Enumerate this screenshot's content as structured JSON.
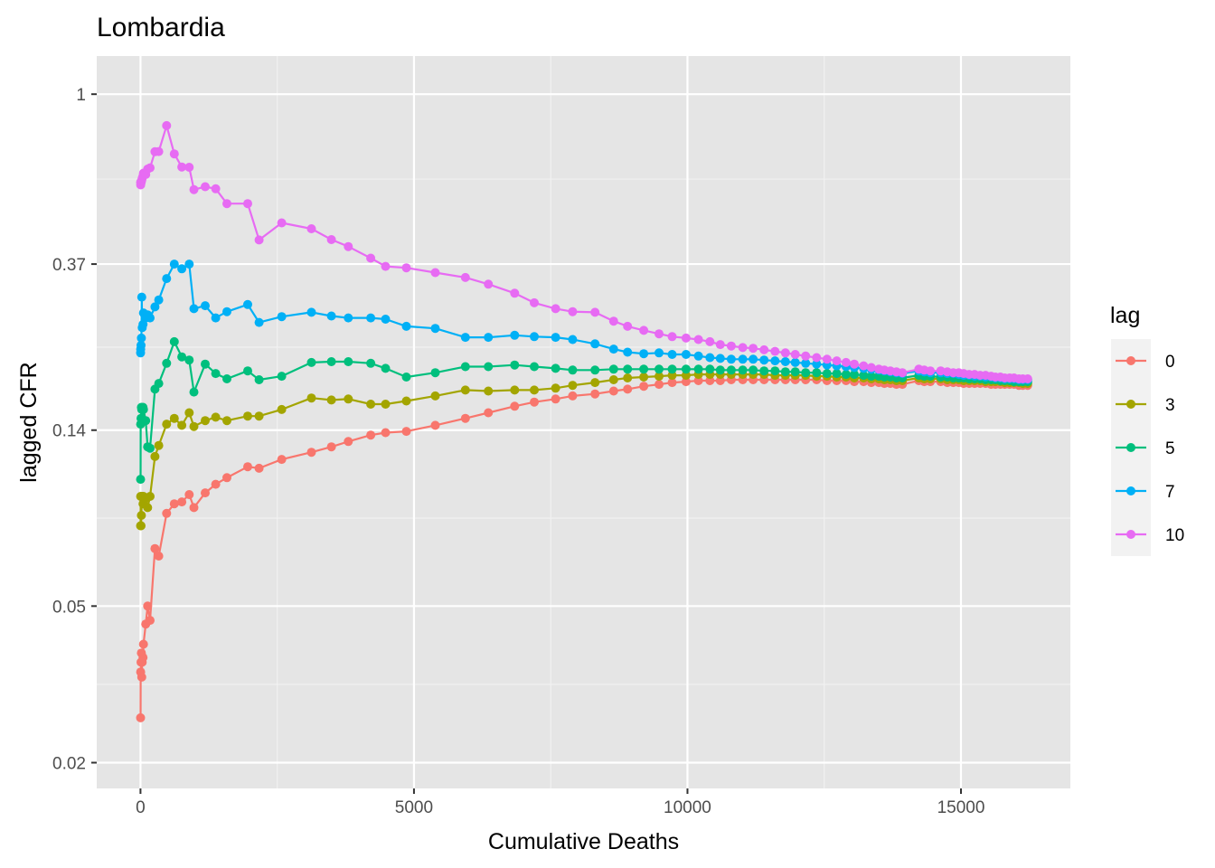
{
  "chart_data": {
    "type": "line",
    "title": "Lombardia",
    "xlabel": "Cumulative Deaths",
    "ylabel": "lagged CFR",
    "x_scale": "linear",
    "y_scale": "log",
    "xlim": [
      -800,
      17000
    ],
    "ylim": [
      0.0172,
      1.25
    ],
    "x_ticks": [
      {
        "value": 0,
        "label": "0"
      },
      {
        "value": 5000,
        "label": "5000"
      },
      {
        "value": 10000,
        "label": "10000"
      },
      {
        "value": 15000,
        "label": "15000"
      }
    ],
    "y_ticks": [
      {
        "value": 0.02,
        "label": "0.02"
      },
      {
        "value": 0.05,
        "label": "0.05"
      },
      {
        "value": 0.14,
        "label": "0.14"
      },
      {
        "value": 0.37,
        "label": "0.37"
      },
      {
        "value": 1,
        "label": "1"
      }
    ],
    "grid": true,
    "legend": {
      "title": "lag",
      "position": "right"
    },
    "x": [
      2,
      4,
      10,
      17,
      23,
      31,
      47,
      55,
      96,
      131,
      175,
      265,
      333,
      478,
      618,
      755,
      890,
      977,
      1183,
      1375,
      1580,
      1960,
      2168,
      2582,
      3125,
      3490,
      3800,
      4210,
      4480,
      4860,
      5390,
      5940,
      6360,
      6840,
      7200,
      7590,
      7900,
      8310,
      8650,
      8905,
      9200,
      9480,
      9720,
      9975,
      10200,
      10410,
      10600,
      10800,
      11010,
      11200,
      11400,
      11600,
      11790,
      11970,
      12160,
      12360,
      12550,
      12730,
      12900,
      13050,
      13220,
      13360,
      13500,
      13600,
      13710,
      13820,
      13930,
      14230,
      14330,
      14440,
      14630,
      14750,
      14860,
      14960,
      15050,
      15150,
      15250,
      15350,
      15450,
      15550,
      15630,
      15720,
      15800,
      15890,
      15970,
      16060,
      16130,
      16220
    ],
    "series": [
      {
        "name": "0",
        "color": "#F8766D",
        "values": [
          0.026,
          0.034,
          0.036,
          0.038,
          0.033,
          0.036,
          0.037,
          0.04,
          0.045,
          0.05,
          0.046,
          0.07,
          0.067,
          0.086,
          0.091,
          0.092,
          0.096,
          0.089,
          0.097,
          0.102,
          0.106,
          0.113,
          0.112,
          0.118,
          0.123,
          0.127,
          0.131,
          0.136,
          0.138,
          0.139,
          0.144,
          0.15,
          0.155,
          0.161,
          0.165,
          0.168,
          0.171,
          0.173,
          0.176,
          0.178,
          0.181,
          0.183,
          0.185,
          0.186,
          0.187,
          0.187,
          0.187,
          0.188,
          0.188,
          0.188,
          0.188,
          0.188,
          0.188,
          0.188,
          0.188,
          0.188,
          0.187,
          0.187,
          0.187,
          0.186,
          0.186,
          0.185,
          0.185,
          0.184,
          0.184,
          0.183,
          0.183,
          0.187,
          0.186,
          0.186,
          0.186,
          0.185,
          0.185,
          0.185,
          0.184,
          0.184,
          0.184,
          0.184,
          0.184,
          0.183,
          0.183,
          0.183,
          0.183,
          0.183,
          0.183,
          0.182,
          0.182,
          0.182
        ]
      },
      {
        "name": "3",
        "color": "#A3A500",
        "values": [
          0.08,
          0.095,
          0.08,
          0.085,
          0.095,
          0.095,
          0.091,
          0.095,
          0.094,
          0.089,
          0.095,
          0.12,
          0.128,
          0.145,
          0.15,
          0.144,
          0.155,
          0.143,
          0.148,
          0.151,
          0.148,
          0.152,
          0.152,
          0.158,
          0.169,
          0.167,
          0.168,
          0.163,
          0.163,
          0.166,
          0.171,
          0.177,
          0.176,
          0.177,
          0.177,
          0.179,
          0.182,
          0.185,
          0.188,
          0.19,
          0.191,
          0.192,
          0.193,
          0.193,
          0.194,
          0.194,
          0.194,
          0.194,
          0.194,
          0.194,
          0.194,
          0.193,
          0.193,
          0.193,
          0.193,
          0.192,
          0.192,
          0.191,
          0.191,
          0.19,
          0.19,
          0.189,
          0.189,
          0.188,
          0.188,
          0.187,
          0.187,
          0.19,
          0.189,
          0.189,
          0.189,
          0.188,
          0.188,
          0.188,
          0.187,
          0.187,
          0.187,
          0.187,
          0.186,
          0.186,
          0.186,
          0.186,
          0.185,
          0.185,
          0.185,
          0.185,
          0.184,
          0.184
        ]
      },
      {
        "name": "5",
        "color": "#00BF7D",
        "values": [
          0.105,
          0.145,
          0.15,
          0.16,
          0.158,
          0.148,
          0.16,
          0.158,
          0.148,
          0.127,
          0.126,
          0.178,
          0.184,
          0.207,
          0.235,
          0.215,
          0.211,
          0.175,
          0.206,
          0.195,
          0.189,
          0.198,
          0.188,
          0.192,
          0.208,
          0.209,
          0.209,
          0.207,
          0.201,
          0.191,
          0.196,
          0.203,
          0.203,
          0.205,
          0.203,
          0.201,
          0.199,
          0.199,
          0.2,
          0.2,
          0.2,
          0.2,
          0.2,
          0.2,
          0.2,
          0.2,
          0.199,
          0.199,
          0.199,
          0.199,
          0.198,
          0.198,
          0.197,
          0.197,
          0.196,
          0.196,
          0.195,
          0.195,
          0.194,
          0.194,
          0.193,
          0.192,
          0.192,
          0.191,
          0.191,
          0.19,
          0.19,
          0.193,
          0.192,
          0.192,
          0.191,
          0.191,
          0.19,
          0.19,
          0.19,
          0.189,
          0.189,
          0.189,
          0.188,
          0.188,
          0.188,
          0.187,
          0.187,
          0.187,
          0.186,
          0.186,
          0.186,
          0.186
        ]
      },
      {
        "name": "7",
        "color": "#00B0F6",
        "values": [
          0.22,
          0.225,
          0.23,
          0.24,
          0.305,
          0.255,
          0.26,
          0.278,
          0.27,
          0.275,
          0.27,
          0.288,
          0.3,
          0.34,
          0.37,
          0.36,
          0.37,
          0.285,
          0.29,
          0.27,
          0.28,
          0.292,
          0.263,
          0.272,
          0.279,
          0.273,
          0.27,
          0.27,
          0.268,
          0.257,
          0.254,
          0.241,
          0.241,
          0.244,
          0.242,
          0.241,
          0.238,
          0.232,
          0.225,
          0.221,
          0.219,
          0.22,
          0.218,
          0.218,
          0.216,
          0.214,
          0.213,
          0.212,
          0.212,
          0.212,
          0.211,
          0.21,
          0.209,
          0.208,
          0.207,
          0.206,
          0.205,
          0.204,
          0.203,
          0.202,
          0.201,
          0.2,
          0.199,
          0.198,
          0.197,
          0.196,
          0.195,
          0.198,
          0.197,
          0.196,
          0.196,
          0.195,
          0.195,
          0.194,
          0.193,
          0.193,
          0.192,
          0.192,
          0.191,
          0.191,
          0.19,
          0.19,
          0.189,
          0.189,
          0.189,
          0.188,
          0.188,
          0.188
        ]
      },
      {
        "name": "10",
        "color": "#E76BF3",
        "values": [
          0.597,
          0.588,
          0.595,
          0.6,
          0.605,
          0.612,
          0.62,
          0.63,
          0.625,
          0.645,
          0.65,
          0.714,
          0.715,
          0.832,
          0.705,
          0.653,
          0.652,
          0.572,
          0.582,
          0.575,
          0.527,
          0.527,
          0.426,
          0.471,
          0.455,
          0.427,
          0.41,
          0.383,
          0.365,
          0.362,
          0.352,
          0.342,
          0.329,
          0.312,
          0.295,
          0.285,
          0.28,
          0.279,
          0.265,
          0.257,
          0.251,
          0.246,
          0.242,
          0.24,
          0.238,
          0.235,
          0.231,
          0.229,
          0.227,
          0.226,
          0.224,
          0.222,
          0.22,
          0.218,
          0.216,
          0.214,
          0.212,
          0.21,
          0.208,
          0.206,
          0.204,
          0.202,
          0.2,
          0.199,
          0.198,
          0.197,
          0.196,
          0.2,
          0.199,
          0.198,
          0.198,
          0.197,
          0.196,
          0.196,
          0.195,
          0.194,
          0.194,
          0.193,
          0.193,
          0.192,
          0.191,
          0.191,
          0.19,
          0.19,
          0.19,
          0.189,
          0.189,
          0.189
        ]
      }
    ]
  }
}
